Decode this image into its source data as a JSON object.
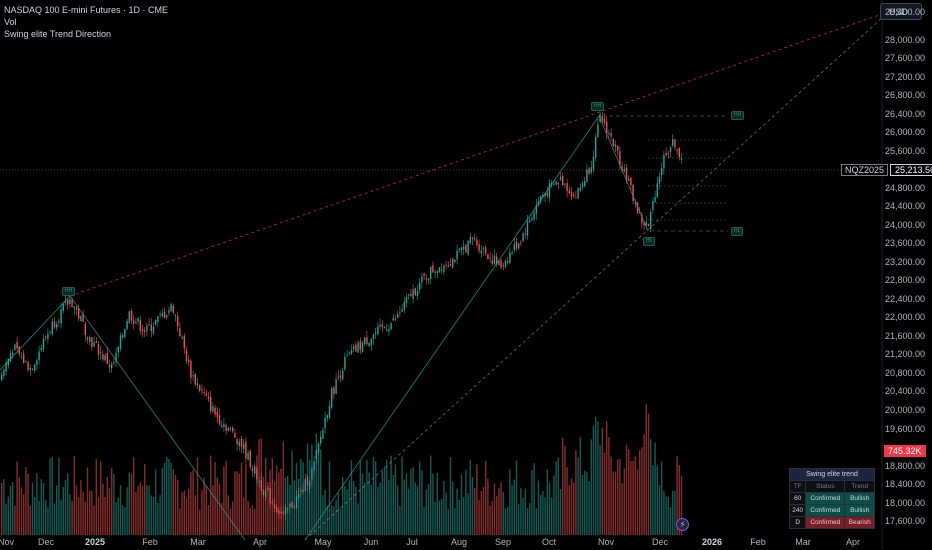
{
  "legend": {
    "title": "NASDAQ 100 E-mini Futures · 1D · CME",
    "line2": "Vol",
    "line3": "Swing elite Trend Direction"
  },
  "currency_button": "USD",
  "last_price": {
    "symbol": "NQZ2025",
    "value": "25,213.50"
  },
  "volume_tag": "745.32K",
  "price_axis": [
    "28,400.00",
    "28,000.00",
    "27,600.00",
    "27,200.00",
    "26,800.00",
    "26,400.00",
    "26,000.00",
    "25,600.00",
    "24,800.00",
    "24,400.00",
    "24,000.00",
    "23,600.00",
    "23,200.00",
    "22,800.00",
    "22,400.00",
    "22,000.00",
    "21,600.00",
    "21,200.00",
    "20,800.00",
    "20,400.00",
    "20,000.00",
    "19,600.00",
    "18,800.00",
    "18,400.00",
    "18,000.00",
    "17,600.00"
  ],
  "time_axis": [
    {
      "label": "Nov",
      "bold": false
    },
    {
      "label": "Dec",
      "bold": false
    },
    {
      "label": "2025",
      "bold": true
    },
    {
      "label": "Feb",
      "bold": false
    },
    {
      "label": "Mar",
      "bold": false
    },
    {
      "label": "Apr",
      "bold": false
    },
    {
      "label": "May",
      "bold": false
    },
    {
      "label": "Jun",
      "bold": false
    },
    {
      "label": "Jul",
      "bold": false
    },
    {
      "label": "Aug",
      "bold": false
    },
    {
      "label": "Sep",
      "bold": false
    },
    {
      "label": "Oct",
      "bold": false
    },
    {
      "label": "Nov",
      "bold": false
    },
    {
      "label": "Dec",
      "bold": false
    },
    {
      "label": "2026",
      "bold": true
    },
    {
      "label": "Feb",
      "bold": false
    },
    {
      "label": "Mar",
      "bold": false
    },
    {
      "label": "Apr",
      "bold": false
    }
  ],
  "swing_labels": {
    "hh1": "HH",
    "hh2": "HH",
    "hl": "HL",
    "right_top": "HH",
    "right_bottom": "HL"
  },
  "trend_table": {
    "title": "Swing elite trend",
    "columns": [
      "TF",
      "Status",
      "Trend"
    ],
    "rows": [
      {
        "tf": "60",
        "status": "Confirmed",
        "trend": "Bullish",
        "kind": "bull"
      },
      {
        "tf": "240",
        "status": "Confirmed",
        "trend": "Bullish",
        "kind": "bull"
      },
      {
        "tf": "D",
        "status": "Confirmed",
        "trend": "Bearish",
        "kind": "bear"
      }
    ]
  },
  "colors": {
    "up": "#26a69a",
    "down": "#ef5350",
    "resistance": "#f23645",
    "support": "#9598a1"
  },
  "chart_data": {
    "type": "candlestick",
    "price_range": [
      17400,
      28600
    ],
    "last_price": 25213.5,
    "swing_points": [
      {
        "label": "HH",
        "date": "2024-12-16",
        "price": 22450
      },
      {
        "label": "HH",
        "date": "2025-10-30",
        "price": 26400
      },
      {
        "label": "HL",
        "date": "2025-11-21",
        "price": 23860
      }
    ]
  }
}
